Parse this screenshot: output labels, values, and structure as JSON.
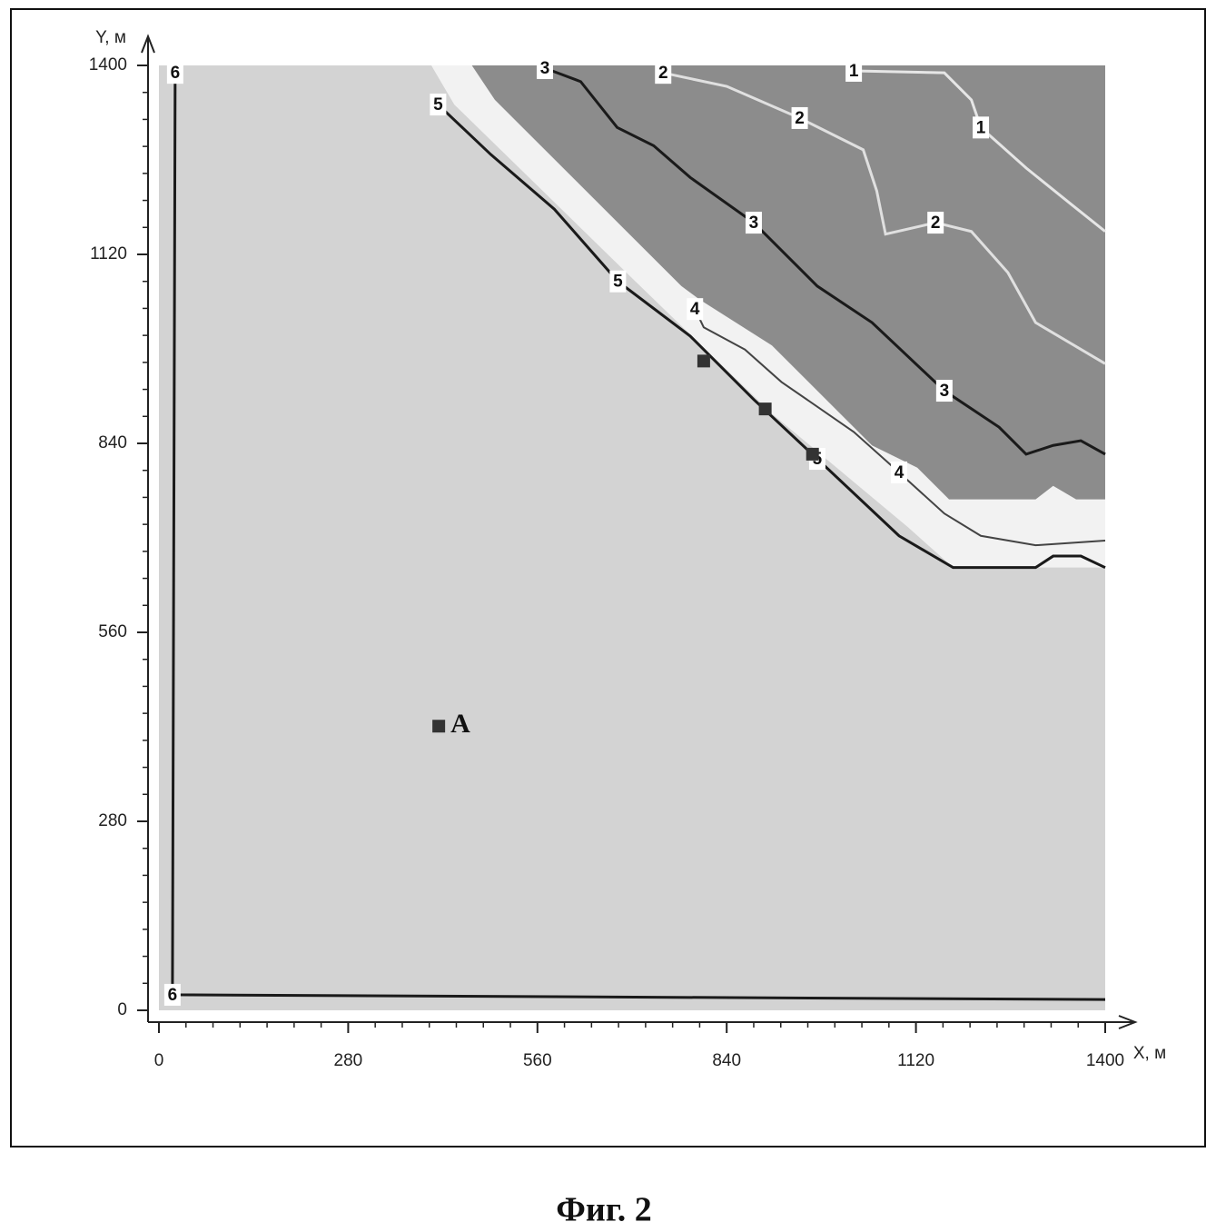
{
  "chart_data": {
    "type": "contour",
    "caption": "Фиг. 2",
    "x_label": "X, м",
    "y_label": "Y, м",
    "xlim": [
      0,
      1400
    ],
    "ylim": [
      0,
      1400
    ],
    "xticks": [
      0,
      280,
      560,
      840,
      1120,
      1400
    ],
    "yticks": [
      0,
      280,
      560,
      840,
      1120,
      1400
    ],
    "minor_tick_step": 40,
    "background_color": "#d3d3d3",
    "regions": [
      {
        "color": "#f2f2f2",
        "x": [
          403,
          437,
          705,
          907,
          1108,
          1175,
          1400,
          1400
        ],
        "y": [
          1400,
          1342,
          1080,
          884,
          716,
          656,
          656,
          1400
        ]
      },
      {
        "color": "#8c8c8c",
        "x": [
          463,
          497,
          773,
          800,
          907,
          1055,
          1122,
          1169,
          1297,
          1323,
          1357,
          1400,
          1400
        ],
        "y": [
          1400,
          1349,
          1073,
          1053,
          985,
          837,
          804,
          757,
          757,
          777,
          757,
          757,
          1400
        ]
      }
    ],
    "series": [
      {
        "name": "1",
        "color": "#e6e6e6",
        "x": [
          1028,
          1162,
          1202,
          1216,
          1283,
          1350,
          1400
        ],
        "y": [
          1392,
          1389,
          1349,
          1308,
          1248,
          1194,
          1154
        ]
      },
      {
        "name": "2",
        "color": "#e0e0e0",
        "x": [
          746,
          840,
          948,
          1042,
          1062,
          1075,
          1149,
          1202,
          1256,
          1297,
          1400
        ],
        "y": [
          1389,
          1369,
          1322,
          1275,
          1214,
          1150,
          1167,
          1154,
          1093,
          1019,
          958
        ]
      },
      {
        "name": "3",
        "color": "#1a1a1a",
        "x": [
          571,
          624,
          678,
          732,
          786,
          880,
          974,
          1055,
          1162,
          1243,
          1283,
          1323,
          1364,
          1400
        ],
        "y": [
          1396,
          1376,
          1308,
          1281,
          1234,
          1167,
          1073,
          1019,
          918,
          864,
          824,
          837,
          844,
          824
        ]
      },
      {
        "name": "4",
        "color": "#444444",
        "x": [
          793,
          806,
          867,
          921,
          1028,
          1095,
          1162,
          1216,
          1297,
          1400
        ],
        "y": [
          1039,
          1012,
          979,
          931,
          857,
          797,
          736,
          703,
          689,
          696
        ]
      },
      {
        "name": "5",
        "color": "#1a1a1a",
        "x": [
          413,
          491,
          585,
          679,
          786,
          880,
          974,
          1095,
          1175,
          1297,
          1323,
          1364,
          1400
        ],
        "y": [
          1342,
          1268,
          1187,
          1080,
          999,
          905,
          817,
          703,
          656,
          656,
          673,
          673,
          656
        ]
      },
      {
        "name": "6",
        "color": "#1a1a1a",
        "x": [
          24,
          20,
          1400
        ],
        "y": [
          1389,
          23,
          16
        ]
      }
    ],
    "markers": {
      "color": "#333333",
      "x": [
        806,
        897,
        967
      ],
      "y": [
        962,
        891,
        824
      ]
    },
    "point": {
      "label": "A",
      "color": "#333333",
      "x": 414,
      "y": 421
    }
  }
}
